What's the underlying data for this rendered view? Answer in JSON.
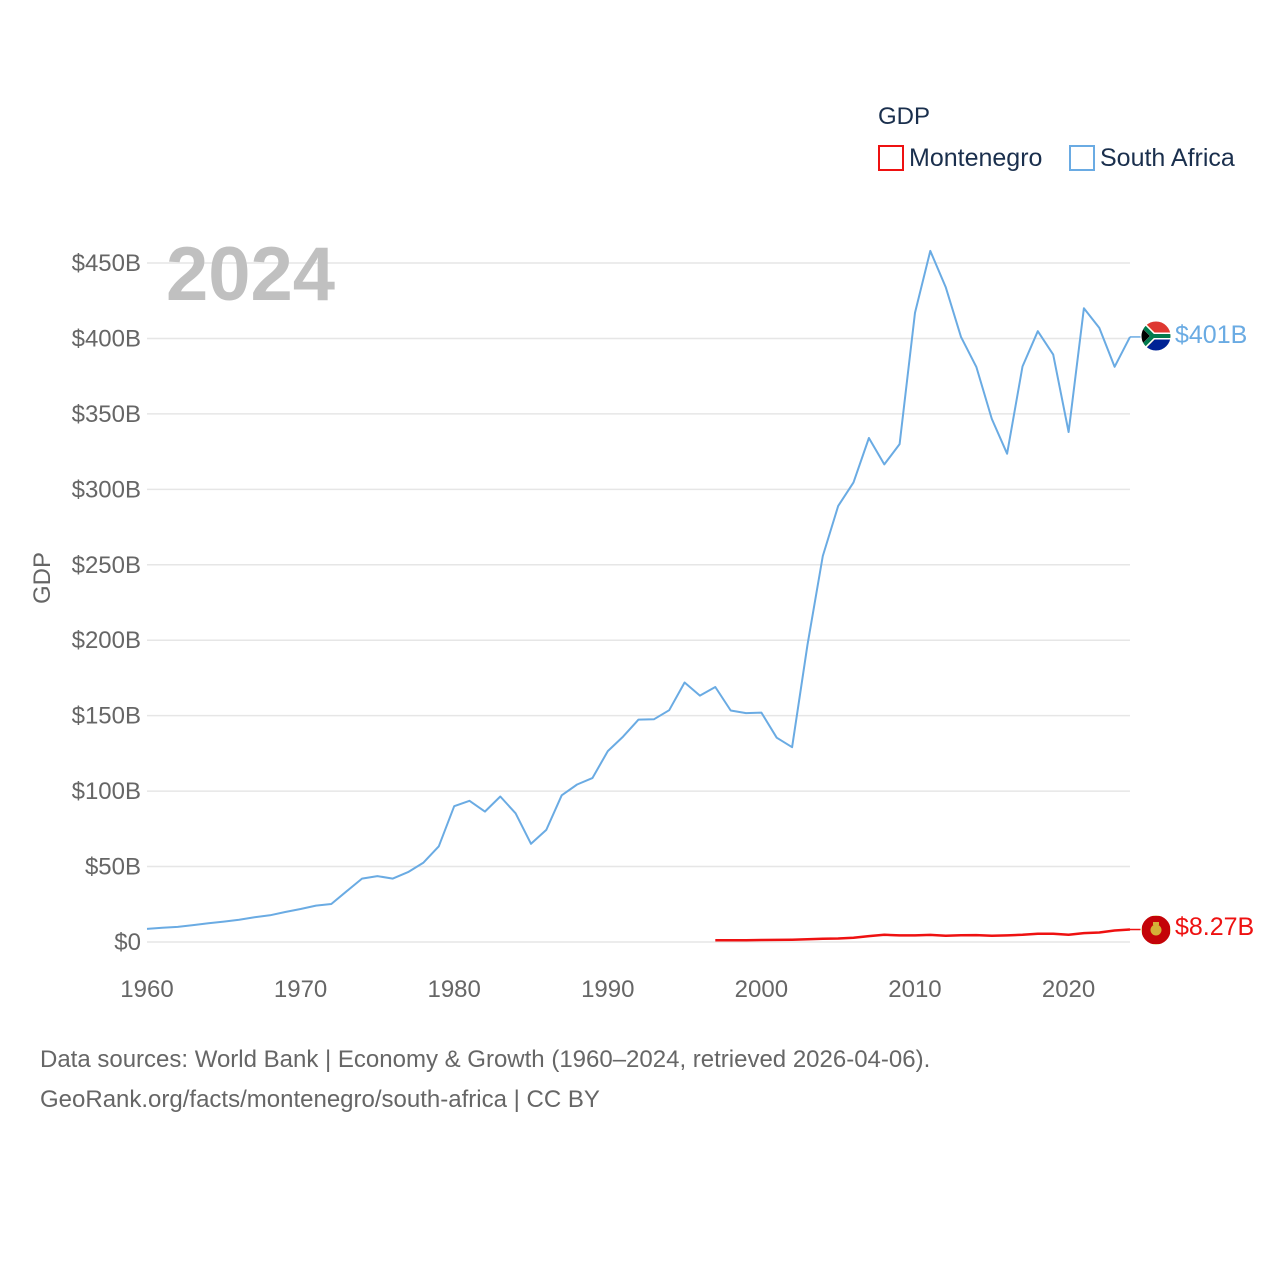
{
  "chart_data": {
    "type": "line",
    "legend_title": "GDP",
    "legend_position": "top-right",
    "year_label": "2024",
    "ylabel": "GDP",
    "xlabel": "",
    "xlim": [
      1960,
      2024
    ],
    "ylim": [
      0,
      450
    ],
    "yunit": "billion USD",
    "x_ticks": [
      1960,
      1970,
      1980,
      1990,
      2000,
      2010,
      2020
    ],
    "x_tick_labels": [
      "1960",
      "1970",
      "1980",
      "1990",
      "2000",
      "2010",
      "2020"
    ],
    "y_ticks": [
      0,
      50,
      100,
      150,
      200,
      250,
      300,
      350,
      400,
      450
    ],
    "y_tick_labels": [
      "$0",
      "$50B",
      "$100B",
      "$150B",
      "$200B",
      "$250B",
      "$300B",
      "$350B",
      "$400B",
      "$450B"
    ],
    "grid": true,
    "series": [
      {
        "name": "Montenegro",
        "color": "#ee1111",
        "end_label": "$8.27B",
        "flag": "montenegro-flag",
        "x": [
          1997,
          1998,
          1999,
          2000,
          2001,
          2002,
          2003,
          2004,
          2005,
          2006,
          2007,
          2008,
          2009,
          2010,
          2011,
          2012,
          2013,
          2014,
          2015,
          2016,
          2017,
          2018,
          2019,
          2020,
          2021,
          2022,
          2023,
          2024
        ],
        "values": [
          1.2,
          1.2,
          1.2,
          1.3,
          1.4,
          1.5,
          1.8,
          2.1,
          2.3,
          2.8,
          3.9,
          4.8,
          4.4,
          4.4,
          4.7,
          4.2,
          4.5,
          4.6,
          4.1,
          4.4,
          4.8,
          5.5,
          5.5,
          4.8,
          5.9,
          6.3,
          7.6,
          8.27
        ]
      },
      {
        "name": "South Africa",
        "color": "#6aabe3",
        "end_label": "$401B",
        "flag": "south-africa-flag",
        "x": [
          1960,
          1961,
          1962,
          1963,
          1964,
          1965,
          1966,
          1967,
          1968,
          1969,
          1970,
          1971,
          1972,
          1973,
          1974,
          1975,
          1976,
          1977,
          1978,
          1979,
          1980,
          1981,
          1982,
          1983,
          1984,
          1985,
          1986,
          1987,
          1988,
          1989,
          1990,
          1991,
          1992,
          1993,
          1994,
          1995,
          1996,
          1997,
          1998,
          1999,
          2000,
          2001,
          2002,
          2003,
          2004,
          2005,
          2006,
          2007,
          2008,
          2009,
          2010,
          2011,
          2012,
          2013,
          2014,
          2015,
          2016,
          2017,
          2018,
          2019,
          2020,
          2021,
          2022,
          2023,
          2024
        ],
        "values": [
          8.7,
          9.4,
          10.0,
          11.2,
          12.4,
          13.5,
          14.8,
          16.4,
          17.7,
          19.9,
          21.9,
          24.1,
          25.2,
          33.7,
          42.0,
          43.7,
          42.0,
          46.3,
          52.6,
          63.4,
          90.0,
          93.6,
          86.4,
          96.4,
          85.3,
          65.1,
          74.3,
          97.2,
          104.4,
          108.6,
          126.5,
          136.1,
          147.4,
          147.6,
          153.6,
          172.0,
          163.3,
          169.0,
          153.4,
          151.7,
          152.0,
          135.4,
          129.1,
          197.0,
          255.8,
          289.0,
          304.6,
          334.0,
          316.5,
          330.0,
          417.0,
          458.0,
          434.0,
          401.0,
          381.0,
          346.7,
          323.6,
          381.4,
          404.8,
          389.3,
          338.0,
          420.0,
          407.0,
          381.2,
          401.0
        ]
      }
    ]
  },
  "footer": {
    "source_line1": "Data sources: World Bank | Economy & Growth (1960–2024, retrieved 2026-04-06).",
    "source_line2": "GeoRank.org/facts/montenegro/south-africa | CC BY"
  }
}
